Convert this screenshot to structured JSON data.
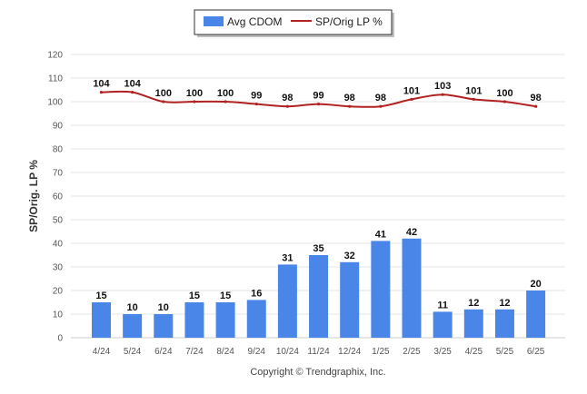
{
  "chart_data": {
    "type": "bar",
    "categories": [
      "4/24",
      "5/24",
      "6/24",
      "7/24",
      "8/24",
      "9/24",
      "10/24",
      "11/24",
      "12/24",
      "1/25",
      "2/25",
      "3/25",
      "4/25",
      "5/25",
      "6/25"
    ],
    "series": [
      {
        "name": "Avg CDOM",
        "type": "bar",
        "color": "#4a86e8",
        "values": [
          15,
          10,
          10,
          15,
          15,
          16,
          31,
          35,
          32,
          41,
          42,
          11,
          12,
          12,
          20
        ]
      },
      {
        "name": "SP/Orig LP %",
        "type": "line",
        "color": "#b22222",
        "values": [
          104,
          104,
          100,
          100,
          100,
          99,
          98,
          99,
          98,
          98,
          101,
          103,
          101,
          100,
          98
        ]
      }
    ],
    "ylabel": "SP/Orig. LP %",
    "xlabel": "",
    "ylim": [
      0,
      120
    ],
    "yticks": [
      0,
      10,
      20,
      30,
      40,
      50,
      60,
      70,
      80,
      90,
      100,
      110,
      120
    ],
    "grid": true,
    "legend_position": "top-center"
  },
  "footer": "Copyright © Trendgraphix, Inc."
}
